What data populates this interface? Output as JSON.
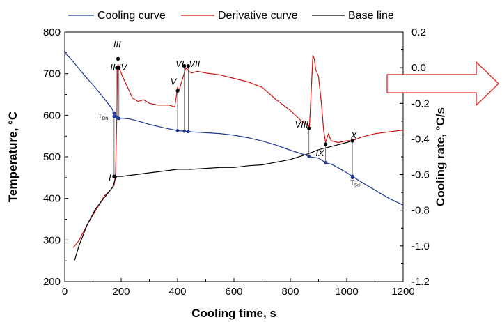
{
  "chart_data": {
    "type": "line",
    "title": "",
    "xlabel": "Cooling time, s",
    "ylabel_left": "Temperature, °C",
    "ylabel_right": "Cooling rate, °C/s",
    "xlim": [
      0,
      1200
    ],
    "ylim_left": [
      200,
      800
    ],
    "ylim_right": [
      -1.2,
      0.2
    ],
    "x_ticks": [
      "0",
      "200",
      "400",
      "600",
      "800",
      "1000",
      "1200"
    ],
    "y_left_ticks": [
      "200",
      "300",
      "400",
      "500",
      "600",
      "700",
      "800"
    ],
    "y_right_ticks": [
      "-1.2",
      "-1.0",
      "-0.8",
      "-0.6",
      "-0.4",
      "-0.2",
      "0.0",
      "0.2"
    ],
    "grid": false,
    "legend_position": "top",
    "series": [
      {
        "name": "Cooling curve",
        "axis": "left",
        "color": "#1f3a93",
        "points": [
          [
            0,
            750
          ],
          [
            20,
            737
          ],
          [
            50,
            712
          ],
          [
            80,
            688
          ],
          [
            110,
            665
          ],
          [
            140,
            640
          ],
          [
            165,
            618
          ],
          [
            182,
            597
          ],
          [
            190,
            592
          ],
          [
            200,
            593
          ],
          [
            230,
            591
          ],
          [
            260,
            586
          ],
          [
            300,
            578
          ],
          [
            350,
            570
          ],
          [
            400,
            563
          ],
          [
            450,
            560
          ],
          [
            500,
            558
          ],
          [
            550,
            556
          ],
          [
            600,
            552
          ],
          [
            650,
            546
          ],
          [
            700,
            538
          ],
          [
            750,
            528
          ],
          [
            800,
            516
          ],
          [
            850,
            505
          ],
          [
            870,
            500
          ],
          [
            900,
            497
          ],
          [
            925,
            486
          ],
          [
            950,
            481
          ],
          [
            1000,
            462
          ],
          [
            1050,
            440
          ],
          [
            1100,
            420
          ],
          [
            1150,
            400
          ],
          [
            1200,
            384
          ]
        ]
      },
      {
        "name": "Derivative curve",
        "axis": "right",
        "color": "#cc1111",
        "points": [
          [
            30,
            -1.01
          ],
          [
            50,
            -0.97
          ],
          [
            80,
            -0.88
          ],
          [
            110,
            -0.8
          ],
          [
            140,
            -0.72
          ],
          [
            160,
            -0.69
          ],
          [
            170,
            -0.67
          ],
          [
            175,
            -0.66
          ],
          [
            180,
            -0.6
          ],
          [
            185,
            -0.25
          ],
          [
            187,
            0.0
          ],
          [
            189,
            0.02
          ],
          [
            195,
            -0.01
          ],
          [
            205,
            -0.05
          ],
          [
            220,
            -0.1
          ],
          [
            240,
            -0.17
          ],
          [
            260,
            -0.19
          ],
          [
            280,
            -0.18
          ],
          [
            300,
            -0.2
          ],
          [
            330,
            -0.21
          ],
          [
            370,
            -0.21
          ],
          [
            390,
            -0.22
          ],
          [
            400,
            -0.11
          ],
          [
            405,
            -0.13
          ],
          [
            420,
            -0.05
          ],
          [
            430,
            0.0
          ],
          [
            440,
            -0.02
          ],
          [
            450,
            -0.03
          ],
          [
            470,
            -0.02
          ],
          [
            500,
            -0.03
          ],
          [
            550,
            -0.04
          ],
          [
            600,
            -0.06
          ],
          [
            650,
            -0.08
          ],
          [
            700,
            -0.11
          ],
          [
            750,
            -0.18
          ],
          [
            800,
            -0.24
          ],
          [
            840,
            -0.3
          ],
          [
            860,
            -0.32
          ],
          [
            868,
            -0.33
          ],
          [
            875,
            -0.1
          ],
          [
            880,
            0.07
          ],
          [
            885,
            0.05
          ],
          [
            890,
            -0.01
          ],
          [
            900,
            -0.05
          ],
          [
            910,
            -0.2
          ],
          [
            918,
            -0.35
          ],
          [
            925,
            -0.42
          ],
          [
            935,
            -0.37
          ],
          [
            945,
            -0.41
          ],
          [
            970,
            -0.42
          ],
          [
            1000,
            -0.41
          ],
          [
            1020,
            -0.41
          ],
          [
            1050,
            -0.39
          ],
          [
            1100,
            -0.37
          ],
          [
            1150,
            -0.36
          ],
          [
            1200,
            -0.35
          ]
        ]
      },
      {
        "name": "Base line",
        "axis": "right",
        "color": "#000000",
        "points": [
          [
            35,
            -1.08
          ],
          [
            50,
            -1.0
          ],
          [
            80,
            -0.88
          ],
          [
            110,
            -0.79
          ],
          [
            140,
            -0.73
          ],
          [
            160,
            -0.69
          ],
          [
            170,
            -0.67
          ],
          [
            180,
            -0.62
          ],
          [
            185,
            -0.61
          ],
          [
            200,
            -0.61
          ],
          [
            250,
            -0.6
          ],
          [
            300,
            -0.59
          ],
          [
            350,
            -0.58
          ],
          [
            400,
            -0.57
          ],
          [
            450,
            -0.57
          ],
          [
            500,
            -0.565
          ],
          [
            550,
            -0.56
          ],
          [
            600,
            -0.56
          ],
          [
            650,
            -0.55
          ],
          [
            700,
            -0.545
          ],
          [
            750,
            -0.53
          ],
          [
            800,
            -0.515
          ],
          [
            850,
            -0.49
          ],
          [
            868,
            -0.48
          ],
          [
            900,
            -0.46
          ],
          [
            925,
            -0.45
          ],
          [
            950,
            -0.44
          ],
          [
            1000,
            -0.42
          ],
          [
            1020,
            -0.41
          ]
        ]
      }
    ],
    "annotations": [
      {
        "label": "I",
        "x": 175,
        "y": -0.61,
        "axis": "right",
        "lx": 160,
        "ly": -0.62
      },
      {
        "label": "II",
        "x": 185,
        "y": 0.0,
        "axis": "right",
        "lx": 170,
        "ly": 0.0
      },
      {
        "label": "III",
        "x": 189,
        "y": 0.05,
        "axis": "right",
        "lx": 186,
        "ly": 0.13
      },
      {
        "label": "IV",
        "x": 192,
        "y": 0.0,
        "axis": "right",
        "lx": 205,
        "ly": 0.0
      },
      {
        "label": "V",
        "x": 400,
        "y": -0.13,
        "axis": "right",
        "lx": 385,
        "ly": -0.08
      },
      {
        "label": "VI",
        "x": 424,
        "y": 0.01,
        "axis": "right",
        "lx": 408,
        "ly": 0.02
      },
      {
        "label": "VII",
        "x": 438,
        "y": 0.01,
        "axis": "right",
        "lx": 460,
        "ly": 0.02
      },
      {
        "label": "VIII",
        "x": 866,
        "y": -0.34,
        "axis": "right",
        "lx": 840,
        "ly": -0.32
      },
      {
        "label": "IX",
        "x": 925,
        "y": -0.43,
        "axis": "right",
        "lx": 905,
        "ly": -0.48
      },
      {
        "label": "X",
        "x": 1020,
        "y": -0.41,
        "axis": "right",
        "lx": 1025,
        "ly": -0.38
      }
    ],
    "temperature_labels": [
      {
        "main": "T",
        "sub": "DN",
        "x": 175,
        "y": 597,
        "lx": 118,
        "ly": 592
      },
      {
        "main": "T",
        "sub": "Sol",
        "x": 1020,
        "y": 450,
        "lx": 1012,
        "ly": 432
      }
    ],
    "arrow_color": "#e02020"
  }
}
